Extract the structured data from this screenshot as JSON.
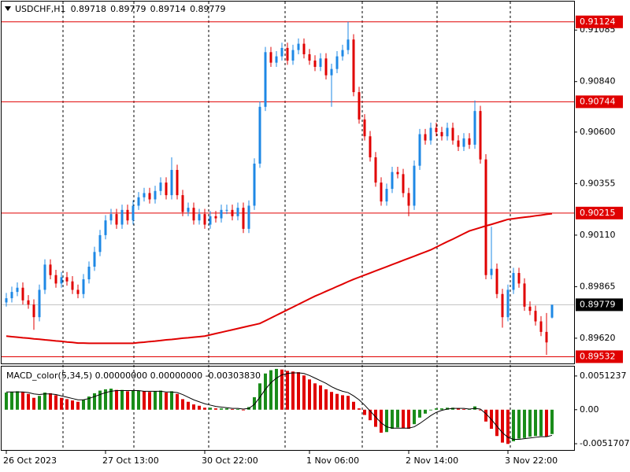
{
  "chart_data": [
    {
      "type": "candlestick",
      "title": "USDCHF,H1",
      "categories": [
        "26 Oct 2023",
        null,
        null,
        null,
        null,
        null,
        null,
        null,
        null,
        null,
        null,
        null,
        null,
        null,
        null,
        null,
        null,
        null,
        "27 Oct 13:00",
        null,
        null,
        null,
        null,
        null,
        null,
        null,
        null,
        null,
        null,
        null,
        null,
        null,
        null,
        null,
        null,
        null,
        "30 Oct 22:00",
        null,
        null,
        null,
        null,
        null,
        null,
        null,
        null,
        null,
        null,
        null,
        null,
        null,
        null,
        null,
        null,
        null,
        null,
        "1 Nov 06:00",
        null,
        null,
        null,
        null,
        null,
        null,
        null,
        null,
        null,
        null,
        null,
        null,
        null,
        null,
        null,
        null,
        null,
        "2 Nov 14:00",
        null,
        null,
        null,
        null,
        null,
        null,
        null,
        null,
        null,
        null,
        null,
        null,
        null,
        null,
        null,
        null,
        null,
        "3 Nov 22:00",
        null,
        null,
        null,
        null,
        null,
        null,
        null,
        null
      ],
      "ohlc": [
        [
          0.8979,
          0.89835,
          0.8977,
          0.8981
        ],
        [
          0.8981,
          0.89865,
          0.8979,
          0.8984
        ],
        [
          0.8984,
          0.89885,
          0.8982,
          0.8986
        ],
        [
          0.8986,
          0.89885,
          0.8978,
          0.898
        ],
        [
          0.898,
          0.89825,
          0.8976,
          0.8978
        ],
        [
          0.8978,
          0.89805,
          0.8966,
          0.8972
        ],
        [
          0.8972,
          0.89875,
          0.897,
          0.8985
        ],
        [
          0.8985,
          0.89995,
          0.8983,
          0.8997
        ],
        [
          0.8997,
          0.89995,
          0.899,
          0.8992
        ],
        [
          0.8992,
          0.89945,
          0.8986,
          0.8988
        ],
        [
          0.8988,
          0.89935,
          0.8986,
          0.8991
        ],
        [
          0.8991,
          0.89935,
          0.8987,
          0.8989
        ],
        [
          0.8989,
          0.89915,
          0.8983,
          0.8985
        ],
        [
          0.8985,
          0.89875,
          0.8981,
          0.8983
        ],
        [
          0.8983,
          0.89925,
          0.8981,
          0.899
        ],
        [
          0.899,
          0.89985,
          0.8988,
          0.8996
        ],
        [
          0.8996,
          0.90055,
          0.8994,
          0.9003
        ],
        [
          0.9003,
          0.90135,
          0.9001,
          0.9011
        ],
        [
          0.9011,
          0.90205,
          0.9009,
          0.9018
        ],
        [
          0.9018,
          0.90235,
          0.9016,
          0.9021
        ],
        [
          0.9021,
          0.90235,
          0.9014,
          0.9016
        ],
        [
          0.9016,
          0.90255,
          0.9014,
          0.9023
        ],
        [
          0.9023,
          0.90255,
          0.9016,
          0.9018
        ],
        [
          0.9018,
          0.90275,
          0.9016,
          0.9025
        ],
        [
          0.9025,
          0.90315,
          0.9023,
          0.9029
        ],
        [
          0.9029,
          0.90335,
          0.9027,
          0.9031
        ],
        [
          0.9031,
          0.90335,
          0.9026,
          0.9028
        ],
        [
          0.9028,
          0.90345,
          0.9026,
          0.9032
        ],
        [
          0.9032,
          0.90385,
          0.903,
          0.9036
        ],
        [
          0.9036,
          0.90385,
          0.9028,
          0.903
        ],
        [
          0.903,
          0.9048,
          0.9028,
          0.9042
        ],
        [
          0.9042,
          0.90445,
          0.9028,
          0.903
        ],
        [
          0.903,
          0.90325,
          0.902,
          0.9022
        ],
        [
          0.9022,
          0.90265,
          0.902,
          0.9024
        ],
        [
          0.9024,
          0.90265,
          0.9016,
          0.9018
        ],
        [
          0.9018,
          0.90235,
          0.9016,
          0.9021
        ],
        [
          0.9021,
          0.90235,
          0.9014,
          0.9016
        ],
        [
          0.9016,
          0.90225,
          0.9014,
          0.902
        ],
        [
          0.902,
          0.90225,
          0.9017,
          0.9019
        ],
        [
          0.9019,
          0.90255,
          0.9017,
          0.9023
        ],
        [
          0.9023,
          0.90255,
          0.9021,
          0.9023
        ],
        [
          0.9023,
          0.90255,
          0.9018,
          0.902
        ],
        [
          0.902,
          0.90265,
          0.9018,
          0.9024
        ],
        [
          0.9024,
          0.90265,
          0.9012,
          0.9014
        ],
        [
          0.9014,
          0.90275,
          0.9012,
          0.9025
        ],
        [
          0.9025,
          0.90475,
          0.9023,
          0.9045
        ],
        [
          0.9045,
          0.90745,
          0.9043,
          0.9072
        ],
        [
          0.9072,
          0.91005,
          0.907,
          0.9098
        ],
        [
          0.9098,
          0.91005,
          0.9091,
          0.9093
        ],
        [
          0.9093,
          0.90985,
          0.9091,
          0.9096
        ],
        [
          0.9096,
          0.91025,
          0.9094,
          0.91
        ],
        [
          0.91,
          0.91025,
          0.9092,
          0.9094
        ],
        [
          0.9094,
          0.91015,
          0.9092,
          0.9099
        ],
        [
          0.9099,
          0.91045,
          0.9097,
          0.9102
        ],
        [
          0.9102,
          0.91045,
          0.9095,
          0.9097
        ],
        [
          0.9097,
          0.90995,
          0.9092,
          0.9094
        ],
        [
          0.9094,
          0.90965,
          0.9089,
          0.9091
        ],
        [
          0.9091,
          0.90975,
          0.9089,
          0.9095
        ],
        [
          0.9095,
          0.90975,
          0.9085,
          0.9087
        ],
        [
          0.9087,
          0.90925,
          0.9072,
          0.909
        ],
        [
          0.909,
          0.90985,
          0.9088,
          0.9096
        ],
        [
          0.9096,
          0.91015,
          0.9094,
          0.9099
        ],
        [
          0.9099,
          0.91124,
          0.9097,
          0.9104
        ],
        [
          0.9104,
          0.91065,
          0.9077,
          0.9079
        ],
        [
          0.9079,
          0.90815,
          0.9064,
          0.9066
        ],
        [
          0.9066,
          0.90685,
          0.9056,
          0.9058
        ],
        [
          0.9058,
          0.90605,
          0.9046,
          0.9048
        ],
        [
          0.9048,
          0.90505,
          0.9034,
          0.9036
        ],
        [
          0.9036,
          0.90385,
          0.9025,
          0.9027
        ],
        [
          0.9027,
          0.90355,
          0.9025,
          0.9033
        ],
        [
          0.9033,
          0.90435,
          0.9031,
          0.9041
        ],
        [
          0.9041,
          0.90435,
          0.9038,
          0.904
        ],
        [
          0.904,
          0.90425,
          0.9029,
          0.9031
        ],
        [
          0.9031,
          0.90335,
          0.902,
          0.9025
        ],
        [
          0.9025,
          0.90465,
          0.9023,
          0.9044
        ],
        [
          0.9044,
          0.90615,
          0.9042,
          0.9059
        ],
        [
          0.9059,
          0.90615,
          0.9054,
          0.9056
        ],
        [
          0.9056,
          0.90645,
          0.9054,
          0.9062
        ],
        [
          0.9062,
          0.90645,
          0.9058,
          0.906
        ],
        [
          0.906,
          0.90625,
          0.9056,
          0.9058
        ],
        [
          0.9058,
          0.90645,
          0.9056,
          0.9062
        ],
        [
          0.9062,
          0.90645,
          0.9054,
          0.9056
        ],
        [
          0.9056,
          0.90585,
          0.9051,
          0.9053
        ],
        [
          0.9053,
          0.90595,
          0.9051,
          0.9057
        ],
        [
          0.9057,
          0.90595,
          0.9052,
          0.9054
        ],
        [
          0.9054,
          0.9075,
          0.9052,
          0.907
        ],
        [
          0.907,
          0.90725,
          0.9045,
          0.9047
        ],
        [
          0.9047,
          0.90495,
          0.899,
          0.8992
        ],
        [
          0.8992,
          0.9015,
          0.899,
          0.8995
        ],
        [
          0.8995,
          0.89975,
          0.8981,
          0.8983
        ],
        [
          0.8983,
          0.89855,
          0.8967,
          0.8972
        ],
        [
          0.8972,
          0.89875,
          0.897,
          0.8985
        ],
        [
          0.8985,
          0.89955,
          0.8983,
          0.8993
        ],
        [
          0.8993,
          0.89955,
          0.8986,
          0.8988
        ],
        [
          0.8988,
          0.89905,
          0.8975,
          0.8977
        ],
        [
          0.8977,
          0.89795,
          0.8973,
          0.8975
        ],
        [
          0.8975,
          0.89775,
          0.8968,
          0.897
        ],
        [
          0.897,
          0.89725,
          0.8963,
          0.8965
        ],
        [
          0.8965,
          0.8974,
          0.8954,
          0.896
        ],
        [
          0.89718,
          0.89779,
          0.89714,
          0.89779
        ]
      ],
      "up_color": "#1e88e5",
      "down_color": "#e00000",
      "ma": {
        "color": "#e00000",
        "values": [
          0.8963,
          0.89627,
          0.89625,
          0.89622,
          0.8962,
          0.89617,
          0.89615,
          0.89612,
          0.8961,
          0.89607,
          0.89605,
          0.89602,
          0.896,
          0.89597,
          0.89597,
          0.89596,
          0.89596,
          0.89596,
          0.89596,
          0.89596,
          0.89596,
          0.89596,
          0.89596,
          0.89596,
          0.89599,
          0.89601,
          0.89604,
          0.89606,
          0.89609,
          0.89612,
          0.89614,
          0.89617,
          0.8962,
          0.89622,
          0.89625,
          0.89627,
          0.8963,
          0.89636,
          0.89642,
          0.89648,
          0.89654,
          0.8966,
          0.89666,
          0.89672,
          0.89678,
          0.89684,
          0.8969,
          0.89703,
          0.89716,
          0.89729,
          0.89742,
          0.89755,
          0.89768,
          0.89781,
          0.89794,
          0.89807,
          0.8982,
          0.89831,
          0.89843,
          0.89854,
          0.89866,
          0.89877,
          0.89889,
          0.899,
          0.8991,
          0.8992,
          0.8993,
          0.8994,
          0.8995,
          0.8996,
          0.8997,
          0.8998,
          0.8999,
          0.9,
          0.9001,
          0.9002,
          0.9003,
          0.9004,
          0.90053,
          0.90066,
          0.90079,
          0.90091,
          0.90104,
          0.90117,
          0.9013,
          0.90138,
          0.90146,
          0.90154,
          0.90161,
          0.90169,
          0.90177,
          0.90185,
          0.90188,
          0.90192,
          0.90195,
          0.90198,
          0.90202,
          0.90205,
          0.90209,
          0.90212
        ]
      },
      "levels": {
        "color": "#e00000",
        "values": [
          0.91124,
          0.90744,
          0.90215,
          0.89532
        ]
      },
      "last_price_color": "#000000",
      "ylim": [
        0.895,
        0.91198
      ],
      "yticks": [
        0.91085,
        {
          "value": 0.9084,
          "label": "0.90840"
        },
        {
          "value": 0.906,
          "label": "0.90600"
        },
        0.90355,
        {
          "value": 0.9011,
          "label": "0.90110"
        },
        0.89865,
        {
          "value": 0.8962,
          "label": "0.89620"
        }
      ]
    },
    {
      "type": "macd",
      "title": "MACD_color(5,34,5) 0.00000000 0.00000000 -0.00303830",
      "up_color": "#1a8c1a",
      "down_color": "#e00000",
      "signal_color": "#000000",
      "values": [
        0.0026,
        0.0027,
        0.0028,
        0.0027,
        0.0024,
        0.0018,
        0.0021,
        0.0026,
        0.0025,
        0.0022,
        0.0018,
        0.0016,
        0.0014,
        0.0012,
        0.0015,
        0.002,
        0.0025,
        0.0029,
        0.0031,
        0.0032,
        0.003,
        0.003,
        0.0028,
        0.0029,
        0.0029,
        0.0028,
        0.0027,
        0.0028,
        0.0029,
        0.0026,
        0.0028,
        0.0024,
        0.0016,
        0.0012,
        0.0008,
        0.0006,
        0.0003,
        0.0003,
        0.0002,
        0.0002,
        0.0002,
        0.0001,
        0.0001,
        -0.0001,
        0.0004,
        0.0019,
        0.004,
        0.0055,
        0.006,
        0.0062,
        0.0061,
        0.0059,
        0.0058,
        0.0057,
        0.0052,
        0.0046,
        0.004,
        0.0037,
        0.0031,
        0.0027,
        0.0024,
        0.0022,
        0.0021,
        0.0012,
        0.0002,
        -0.0008,
        -0.0016,
        -0.0026,
        -0.0035,
        -0.0034,
        -0.0029,
        -0.0027,
        -0.0028,
        -0.0029,
        -0.0022,
        -0.0012,
        -0.0006,
        -0.0001,
        0.0002,
        0.0002,
        0.0003,
        0.0003,
        0.0002,
        0.0001,
        0.0001,
        0.0005,
        -0.0001,
        -0.0018,
        -0.0029,
        -0.004,
        -0.005,
        -0.0052,
        -0.0048,
        -0.0044,
        -0.0043,
        -0.0041,
        -0.004,
        -0.004,
        -0.0041,
        -0.0037
      ],
      "signal": [
        0.0027,
        0.0027,
        0.0027,
        0.0027,
        0.0026,
        0.0024,
        0.0023,
        0.0024,
        0.0024,
        0.0023,
        0.0021,
        0.0019,
        0.0017,
        0.0015,
        0.0015,
        0.0017,
        0.002,
        0.0023,
        0.0026,
        0.0028,
        0.0029,
        0.0029,
        0.0029,
        0.0029,
        0.0029,
        0.0028,
        0.0028,
        0.0028,
        0.0028,
        0.0027,
        0.0027,
        0.0026,
        0.0023,
        0.0019,
        0.0015,
        0.0012,
        0.0009,
        0.0007,
        0.0005,
        0.0004,
        0.0003,
        0.0002,
        0.0002,
        0.0001,
        0.0002,
        0.0008,
        0.0019,
        0.0031,
        0.0041,
        0.0048,
        0.0053,
        0.0055,
        0.0056,
        0.0056,
        0.0055,
        0.0052,
        0.0048,
        0.0044,
        0.004,
        0.0035,
        0.0031,
        0.0028,
        0.0026,
        0.0021,
        0.0015,
        0.0007,
        -0.0002,
        -0.0011,
        -0.002,
        -0.0026,
        -0.0028,
        -0.0028,
        -0.0028,
        -0.0028,
        -0.0026,
        -0.0021,
        -0.0015,
        -0.0009,
        -0.0004,
        -0.0001,
        0.0001,
        0.0002,
        0.0002,
        0.0002,
        0.0001,
        0.0002,
        0.0001,
        -0.0006,
        -0.0015,
        -0.0025,
        -0.0035,
        -0.0042,
        -0.0045,
        -0.0045,
        -0.0044,
        -0.0043,
        -0.0042,
        -0.0041,
        -0.0041,
        -0.0039
      ],
      "ylim": [
        -0.00612,
        0.00643
      ],
      "yticks": [
        0.0051237,
        {
          "value": 0,
          "label": "0.00"
        },
        -0.0051707
      ]
    }
  ]
}
